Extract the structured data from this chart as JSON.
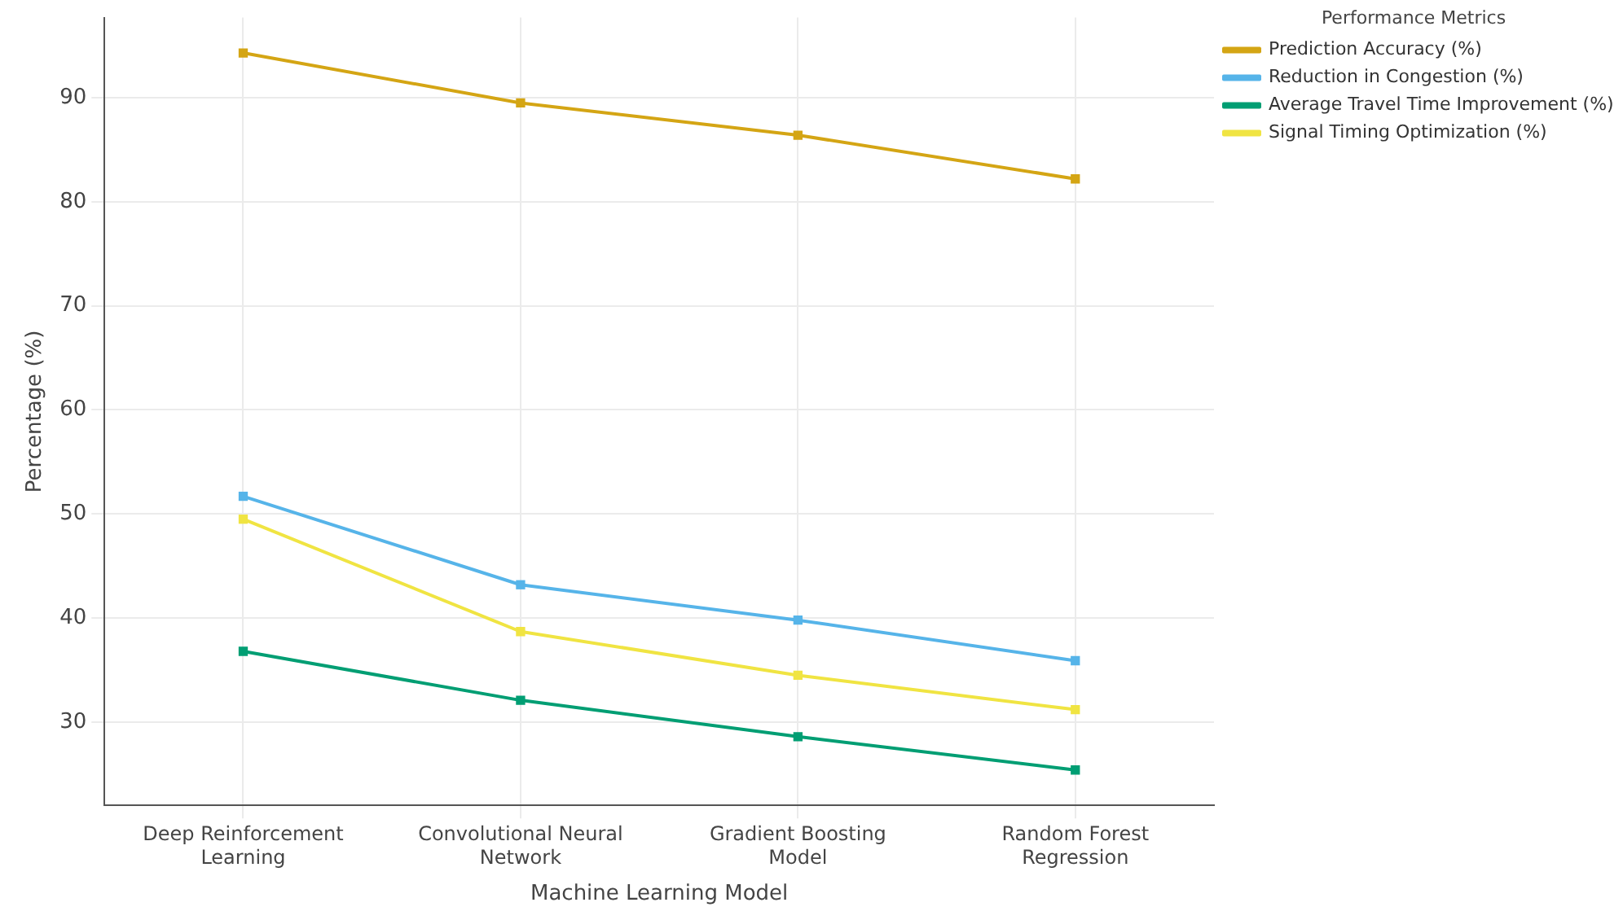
{
  "chart_data": {
    "type": "line",
    "xlabel": "Machine Learning Model",
    "ylabel": "Percentage (%)",
    "legend_title": "Performance Metrics",
    "categories": [
      "Deep Reinforcement Learning",
      "Convolutional Neural Network",
      "Gradient Boosting Model",
      "Random Forest Regression"
    ],
    "series": [
      {
        "name": "Prediction Accuracy (%)",
        "color": "#d4a514",
        "values": [
          94.3,
          89.5,
          86.4,
          82.2
        ]
      },
      {
        "name": "Reduction in Congestion (%)",
        "color": "#56b4e9",
        "values": [
          51.7,
          43.2,
          39.8,
          35.9
        ]
      },
      {
        "name": "Average Travel Time Improvement (%)",
        "color": "#009e73",
        "values": [
          36.8,
          32.1,
          28.6,
          25.4
        ]
      },
      {
        "name": "Signal Timing Optimization (%)",
        "color": "#f0e442",
        "values": [
          49.5,
          38.7,
          34.5,
          31.2
        ]
      }
    ],
    "ylim": [
      22,
      97.7
    ],
    "yticks": [
      30,
      40,
      50,
      60,
      70,
      80,
      90
    ],
    "grid": true,
    "legend": "top right",
    "marker": "square",
    "line_style": "solid"
  }
}
